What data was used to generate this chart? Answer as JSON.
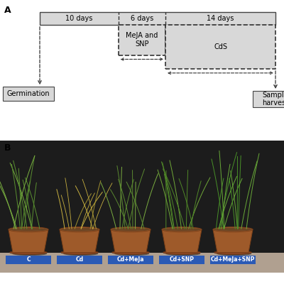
{
  "panel_a_label": "A",
  "panel_b_label": "B",
  "timeline_bar_color": "#d8d8d8",
  "timeline_bar_edge": "#444444",
  "box_bg": "#d8d8d8",
  "box_edge": "#444444",
  "meja_snp_label": "MeJA and\nSNP",
  "cds_label": "CdS",
  "germination_label": "Germination",
  "sample_harvest_label": "Sample\nharvest",
  "days_10": "10 days",
  "days_6": "6 days",
  "days_14": "14 days",
  "bg_color": "#ffffff",
  "dashed_color": "#333333",
  "pot_labels": [
    "C",
    "Cd",
    "Cd+MeJa",
    "Cd+SNP",
    "Cd+MeJa+SNP"
  ],
  "pot_label_bg": "#2b5ab5",
  "pot_label_fg": "#ffffff",
  "photo_bg": "#1c1c1c",
  "pot_color": "#9e5a2a",
  "pot_rim_color": "#7a3f18",
  "soil_color": "#6b4423",
  "plant_green": "#4a8030",
  "plant_yellow": "#c8b040"
}
